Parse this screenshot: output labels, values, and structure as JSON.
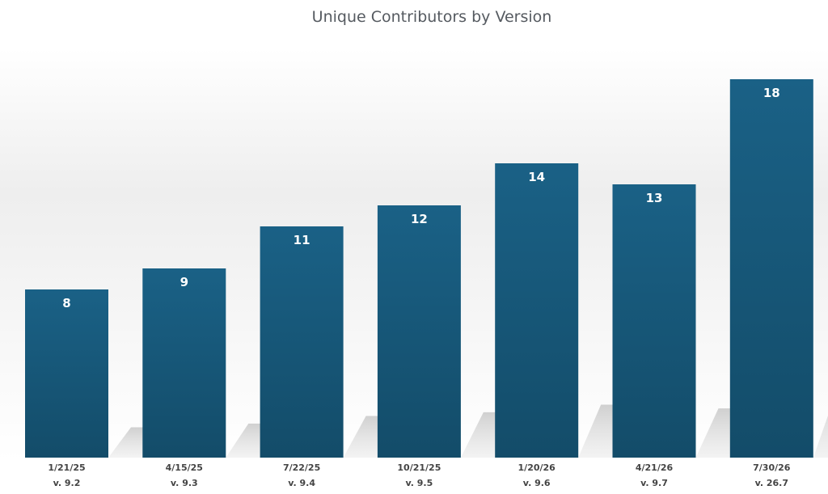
{
  "chart_data": {
    "type": "bar",
    "title": "Unique Contributors by Version",
    "categories": [
      {
        "date": "1/21/25",
        "version": "v. 9.2"
      },
      {
        "date": "4/15/25",
        "version": "v. 9.3"
      },
      {
        "date": "7/22/25",
        "version": "v. 9.4"
      },
      {
        "date": "10/21/25",
        "version": "v. 9.5"
      },
      {
        "date": "1/20/26",
        "version": "v. 9.6"
      },
      {
        "date": "4/21/26",
        "version": "v. 9.7"
      },
      {
        "date": "7/30/26",
        "version": "v. 26.7"
      }
    ],
    "values": [
      8,
      9,
      11,
      12,
      14,
      13,
      18
    ],
    "data_labels": [
      "8",
      "9",
      "11",
      "12",
      "14",
      "13",
      "18"
    ],
    "ylim": [
      0,
      18
    ],
    "grid": false,
    "bar_color": "#1a5f82"
  }
}
